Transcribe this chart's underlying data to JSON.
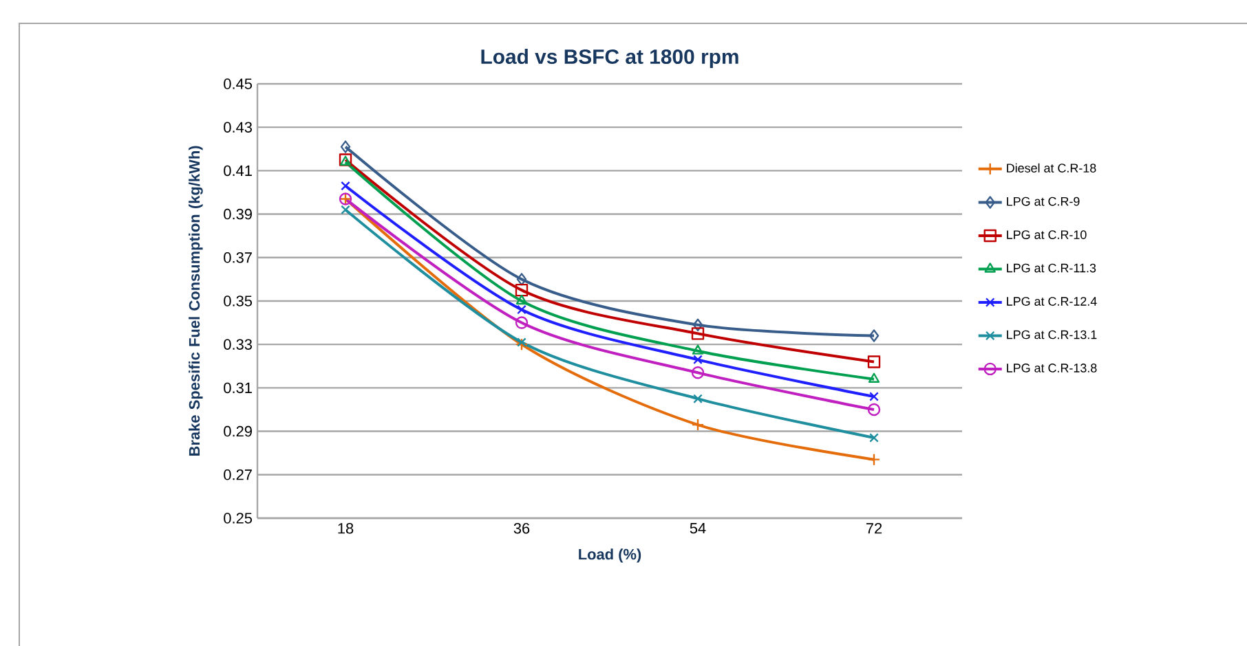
{
  "chart_data": {
    "type": "line",
    "title": "Load vs BSFC at 1800 rpm",
    "xlabel": "Load (%)",
    "ylabel": "Brake Spesific Fuel Consumption (kg/kWh)",
    "categories": [
      "18",
      "36",
      "54",
      "72"
    ],
    "ylim": [
      0.25,
      0.45
    ],
    "yticks": [
      0.25,
      0.27,
      0.29,
      0.31,
      0.33,
      0.35,
      0.37,
      0.39,
      0.41,
      0.43,
      0.45
    ],
    "grid": "y",
    "legend": "right",
    "series": [
      {
        "name": "Diesel at C.R-18",
        "color": "#e46c0a",
        "marker": "plus",
        "values": [
          0.397,
          0.33,
          0.293,
          0.277
        ]
      },
      {
        "name": "LPG at C.R-9",
        "color": "#385d8a",
        "marker": "diamond",
        "values": [
          0.421,
          0.36,
          0.339,
          0.334
        ]
      },
      {
        "name": "LPG at C.R-10",
        "color": "#c00000",
        "marker": "square",
        "values": [
          0.415,
          0.355,
          0.335,
          0.322
        ]
      },
      {
        "name": "LPG at C.R-11.3",
        "color": "#00a050",
        "marker": "triangle",
        "values": [
          0.414,
          0.35,
          0.327,
          0.314
        ]
      },
      {
        "name": "LPG at C.R-12.4",
        "color": "#1f1fff",
        "marker": "cross",
        "values": [
          0.403,
          0.346,
          0.323,
          0.306
        ]
      },
      {
        "name": "LPG at C.R-13.1",
        "color": "#1f8f9f",
        "marker": "cross",
        "values": [
          0.392,
          0.331,
          0.305,
          0.287
        ]
      },
      {
        "name": "LPG at C.R-13.8",
        "color": "#c020c0",
        "marker": "circle",
        "values": [
          0.397,
          0.34,
          0.317,
          0.3
        ]
      }
    ]
  }
}
